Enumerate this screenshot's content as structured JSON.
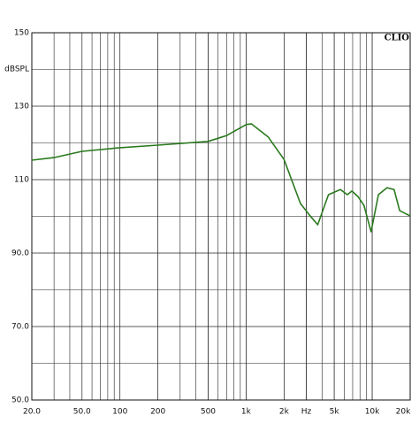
{
  "chart_data": {
    "type": "line",
    "annotation": "CLIO",
    "ylabel": "dBSPL",
    "xscale": "log",
    "grid": true,
    "xlim": [
      20,
      20000
    ],
    "ylim": [
      50,
      150
    ],
    "xticks": [
      {
        "value": 20,
        "label": "20.0"
      },
      {
        "value": 50,
        "label": "50.0"
      },
      100,
      200,
      500,
      {
        "value": 1000,
        "label": "1k"
      },
      {
        "value": 2000,
        "label": "2k"
      },
      {
        "value": 3000,
        "label": "Hz"
      },
      {
        "value": 5000,
        "label": "5k"
      },
      {
        "value": 10000,
        "label": "10k"
      },
      {
        "value": 20000,
        "label": "20k"
      }
    ],
    "yticks": [
      150,
      130,
      110,
      {
        "value": 90,
        "label": "90.0"
      },
      {
        "value": 70,
        "label": "70.0"
      },
      {
        "value": 50,
        "label": "50.0"
      }
    ],
    "x": [
      20,
      30,
      50,
      100,
      200,
      500,
      700,
      1000,
      1100,
      1500,
      2000,
      2700,
      3170,
      3700,
      4500,
      5600,
      6350,
      6900,
      7700,
      8600,
      9800,
      11200,
      13100,
      14900,
      16500,
      20000
    ],
    "series": [
      {
        "color": "#2a7a1e",
        "values": [
          115.3,
          116.0,
          117.7,
          118.7,
          119.4,
          120.4,
          122.0,
          125.0,
          125.2,
          121.6,
          115.5,
          103.5,
          100.4,
          97.7,
          105.9,
          107.3,
          105.9,
          106.9,
          105.4,
          103.0,
          95.8,
          105.9,
          107.8,
          107.3,
          101.6,
          100.1
        ]
      }
    ]
  }
}
